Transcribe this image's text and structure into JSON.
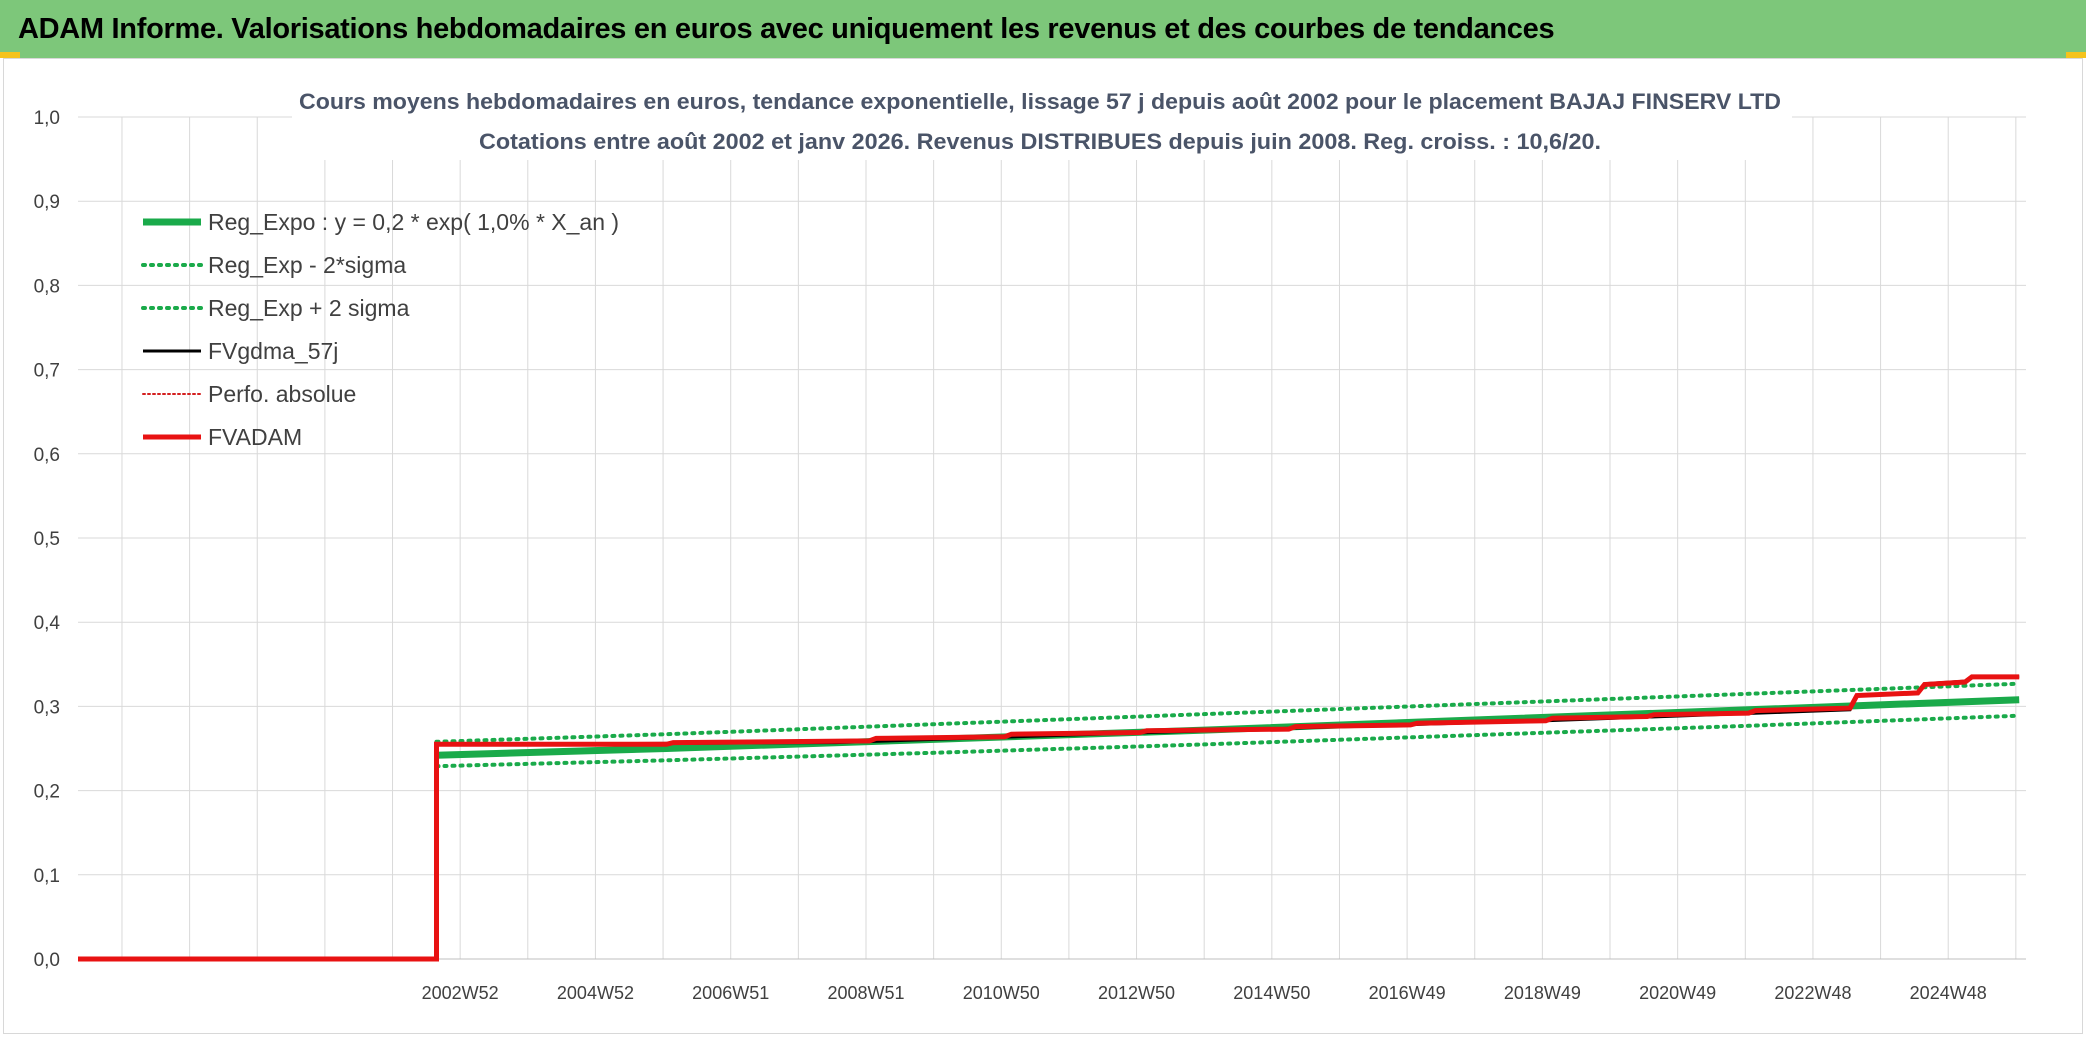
{
  "header": {
    "title": "ADAM Informe. Valorisations hebdomadaires en euros avec uniquement les revenus et des courbes de tendances"
  },
  "colors": {
    "header_bg": "#7dc77a",
    "reg_expo": "#1aaa4a",
    "reg_band": "#1aaa4a",
    "fvgdma": "#000000",
    "perfo": "#d42020",
    "fvadam": "#e81212",
    "grid": "#d9d9d9",
    "text": "#404040"
  },
  "chart_data": {
    "type": "line",
    "title": "Cours moyens hebdomadaires en euros, tendance exponentielle, lissage 57 j depuis août 2002 pour le placement BAJAJ FINSERV LTD",
    "subtitle": "Cotations entre août 2002 et janv 2026. Revenus DISTRIBUES depuis juin 2008. Reg. croiss. : 10,6/20.",
    "xlabel": "",
    "ylabel": "",
    "x_tick_labels": [
      "2002W52",
      "2004W52",
      "2006W51",
      "2008W51",
      "2010W50",
      "2012W50",
      "2014W50",
      "2016W49",
      "2018W49",
      "2020W49",
      "2022W48",
      "2024W48"
    ],
    "x_tick_years": [
      2002.95,
      2004.95,
      2006.95,
      2008.95,
      2010.95,
      2012.95,
      2014.95,
      2016.95,
      2018.95,
      2020.95,
      2022.95,
      2024.95
    ],
    "xlim": [
      1997.3,
      2026.1
    ],
    "ylim": [
      0,
      1.0
    ],
    "y_ticks": [
      "0,0",
      "0,1",
      "0,2",
      "0,3",
      "0,4",
      "0,5",
      "0,6",
      "0,7",
      "0,8",
      "0,9",
      "1,0"
    ],
    "grid": true,
    "legend_position": "top-left",
    "series": [
      {
        "name": "Reg_Expo : y = 0,2 * exp( 1,0% *  X_an )",
        "style": "solid-thick",
        "points": [
          [
            2002.6,
            0.242
          ],
          [
            2006.0,
            0.25
          ],
          [
            2010.0,
            0.261
          ],
          [
            2014.0,
            0.272
          ],
          [
            2018.0,
            0.284
          ],
          [
            2022.0,
            0.296
          ],
          [
            2026.0,
            0.308
          ]
        ]
      },
      {
        "name": "Reg_Exp - 2*sigma",
        "style": "dotted",
        "points": [
          [
            2002.6,
            0.229
          ],
          [
            2006.0,
            0.236
          ],
          [
            2010.0,
            0.245
          ],
          [
            2014.0,
            0.255
          ],
          [
            2018.0,
            0.266
          ],
          [
            2022.0,
            0.277
          ],
          [
            2026.0,
            0.289
          ]
        ]
      },
      {
        "name": "Reg_Exp + 2 sigma",
        "style": "dotted",
        "points": [
          [
            2002.6,
            0.258
          ],
          [
            2006.0,
            0.267
          ],
          [
            2010.0,
            0.279
          ],
          [
            2014.0,
            0.291
          ],
          [
            2018.0,
            0.303
          ],
          [
            2022.0,
            0.315
          ],
          [
            2026.0,
            0.327
          ]
        ]
      },
      {
        "name": "FVgdma_57j",
        "style": "solid",
        "points": [
          [
            1997.3,
            0.0
          ],
          [
            2002.6,
            0.0
          ],
          [
            2002.6,
            0.255
          ],
          [
            2008.5,
            0.257
          ],
          [
            2012.0,
            0.266
          ],
          [
            2016.0,
            0.276
          ],
          [
            2019.0,
            0.283
          ],
          [
            2022.5,
            0.293
          ],
          [
            2023.5,
            0.296
          ],
          [
            2023.6,
            0.313
          ],
          [
            2024.5,
            0.316
          ],
          [
            2024.6,
            0.327
          ],
          [
            2025.2,
            0.33
          ],
          [
            2025.3,
            0.335
          ],
          [
            2026.0,
            0.335
          ]
        ]
      },
      {
        "name": "Perfo. absolue",
        "style": "dotted-thin",
        "points": []
      },
      {
        "name": "FVADAM",
        "style": "solid-thick",
        "points": [
          [
            1997.3,
            0.0
          ],
          [
            2002.6,
            0.0
          ],
          [
            2002.6,
            0.255
          ],
          [
            2006.0,
            0.255
          ],
          [
            2006.1,
            0.257
          ],
          [
            2009.0,
            0.259
          ],
          [
            2009.1,
            0.262
          ],
          [
            2011.0,
            0.264
          ],
          [
            2011.1,
            0.267
          ],
          [
            2013.0,
            0.269
          ],
          [
            2013.1,
            0.271
          ],
          [
            2015.2,
            0.273
          ],
          [
            2015.3,
            0.276
          ],
          [
            2017.0,
            0.278
          ],
          [
            2017.1,
            0.28
          ],
          [
            2019.0,
            0.283
          ],
          [
            2019.1,
            0.286
          ],
          [
            2020.5,
            0.288
          ],
          [
            2020.6,
            0.29
          ],
          [
            2022.0,
            0.292
          ],
          [
            2022.1,
            0.295
          ],
          [
            2023.5,
            0.298
          ],
          [
            2023.6,
            0.313
          ],
          [
            2024.5,
            0.316
          ],
          [
            2024.6,
            0.326
          ],
          [
            2025.2,
            0.329
          ],
          [
            2025.3,
            0.335
          ],
          [
            2026.0,
            0.335
          ]
        ]
      }
    ]
  }
}
